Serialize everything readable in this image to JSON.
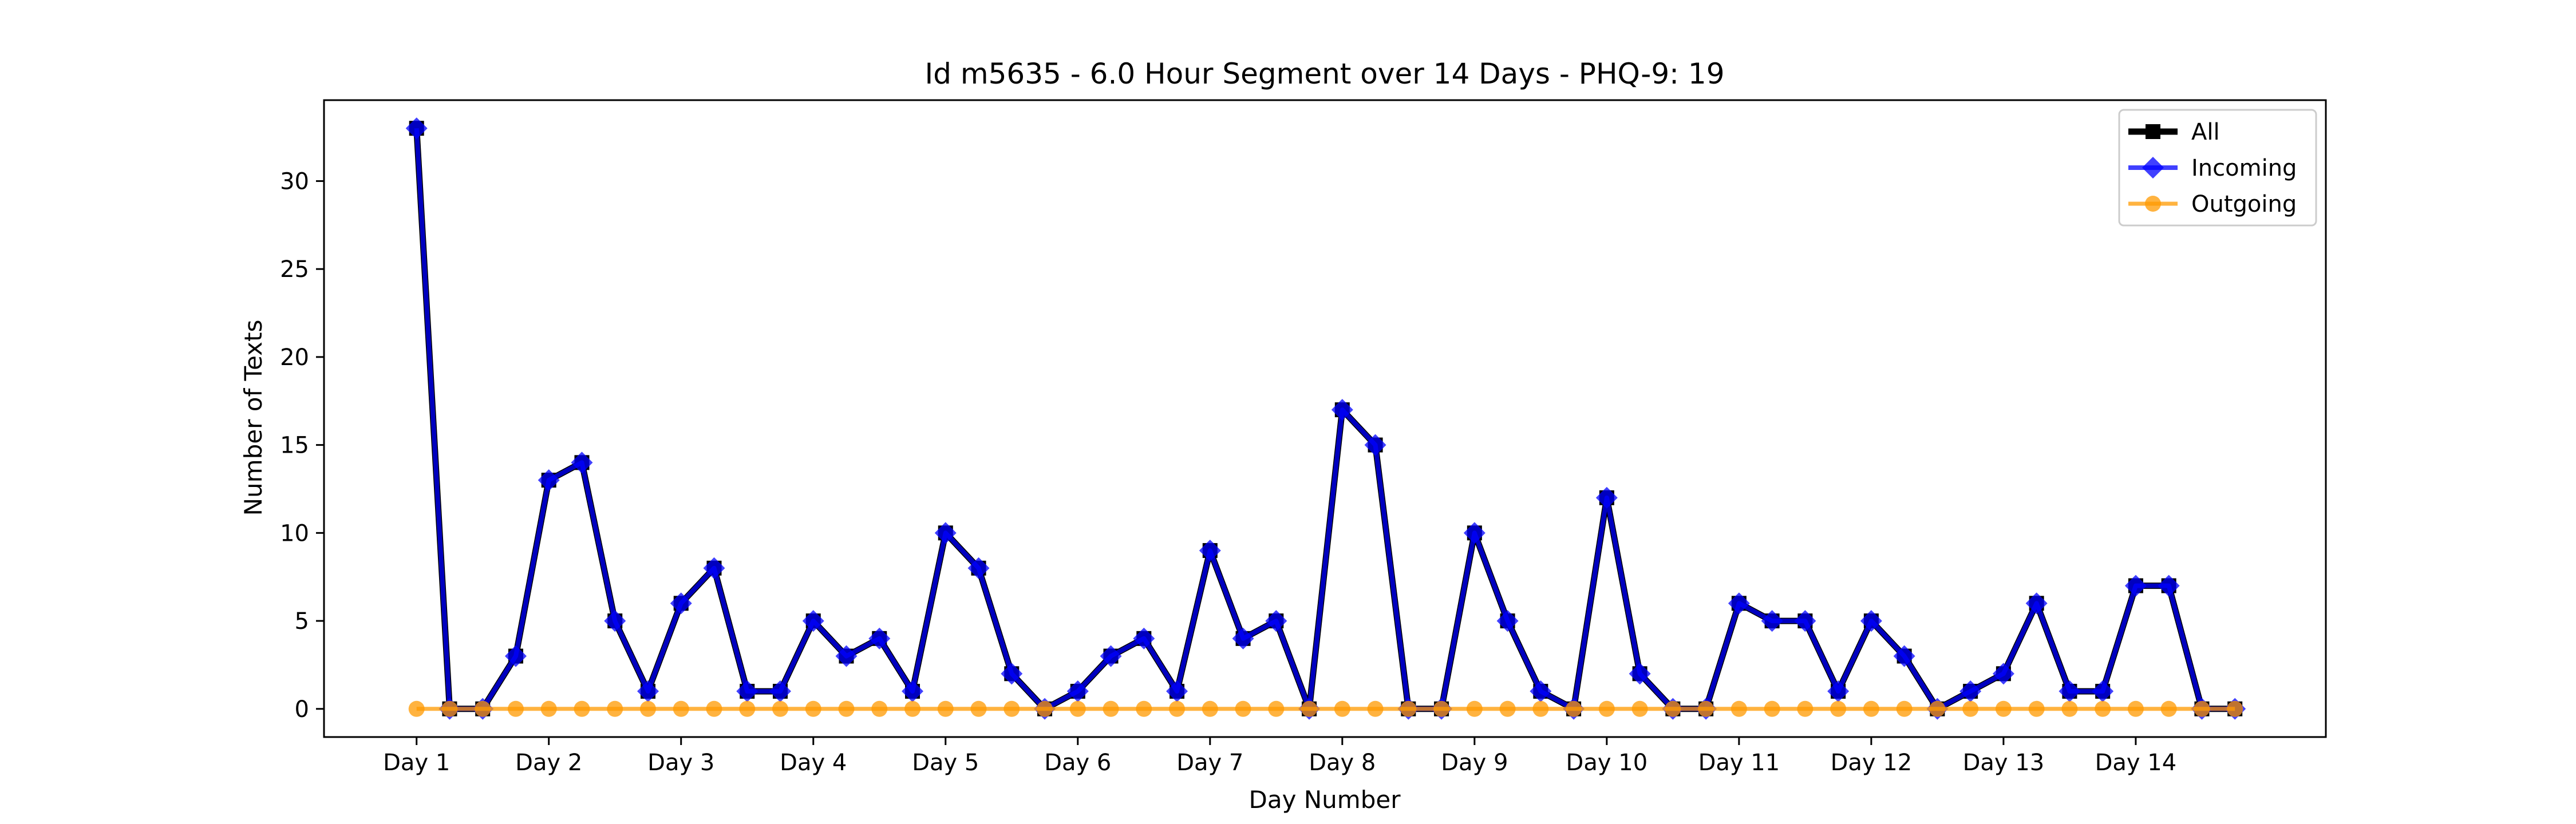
{
  "chart_data": {
    "type": "line",
    "title": "Id m5635 - 6.0 Hour Segment over 14 Days - PHQ-9: 19",
    "xlabel": "Day Number",
    "ylabel": "Number of Texts",
    "ylim": [
      -1.6,
      34.6
    ],
    "xlim": [
      -2.8,
      57.75
    ],
    "yticks": [
      0,
      5,
      10,
      15,
      20,
      25,
      30
    ],
    "xticks": [
      {
        "pos": 0,
        "label": "Day 1"
      },
      {
        "pos": 4,
        "label": "Day 2"
      },
      {
        "pos": 8,
        "label": "Day 3"
      },
      {
        "pos": 12,
        "label": "Day 4"
      },
      {
        "pos": 16,
        "label": "Day 5"
      },
      {
        "pos": 20,
        "label": "Day 6"
      },
      {
        "pos": 24,
        "label": "Day 7"
      },
      {
        "pos": 28,
        "label": "Day 8"
      },
      {
        "pos": 32,
        "label": "Day 9"
      },
      {
        "pos": 36,
        "label": "Day 10"
      },
      {
        "pos": 40,
        "label": "Day 11"
      },
      {
        "pos": 44,
        "label": "Day 12"
      },
      {
        "pos": 48,
        "label": "Day 13"
      },
      {
        "pos": 52,
        "label": "Day 14"
      }
    ],
    "grid": false,
    "legend_position": "top-right",
    "series": [
      {
        "name": "All",
        "color": "#000000",
        "marker": "square",
        "values": [
          33,
          0,
          0,
          3,
          13,
          14,
          5,
          1,
          6,
          8,
          1,
          1,
          5,
          3,
          4,
          1,
          10,
          8,
          2,
          0,
          1,
          3,
          4,
          1,
          9,
          4,
          5,
          0,
          17,
          15,
          0,
          0,
          10,
          5,
          1,
          0,
          12,
          2,
          0,
          0,
          6,
          5,
          5,
          1,
          5,
          3,
          0,
          1,
          2,
          6,
          1,
          1,
          7,
          7,
          0,
          0
        ]
      },
      {
        "name": "Incoming",
        "color": "#0000ff",
        "marker": "diamond",
        "values": [
          33,
          0,
          0,
          3,
          13,
          14,
          5,
          1,
          6,
          8,
          1,
          1,
          5,
          3,
          4,
          1,
          10,
          8,
          2,
          0,
          1,
          3,
          4,
          1,
          9,
          4,
          5,
          0,
          17,
          15,
          0,
          0,
          10,
          5,
          1,
          0,
          12,
          2,
          0,
          0,
          6,
          5,
          5,
          1,
          5,
          3,
          0,
          1,
          2,
          6,
          1,
          1,
          7,
          7,
          0,
          0
        ]
      },
      {
        "name": "Outgoing",
        "color": "#ff9900",
        "marker": "circle",
        "values": [
          0,
          0,
          0,
          0,
          0,
          0,
          0,
          0,
          0,
          0,
          0,
          0,
          0,
          0,
          0,
          0,
          0,
          0,
          0,
          0,
          0,
          0,
          0,
          0,
          0,
          0,
          0,
          0,
          0,
          0,
          0,
          0,
          0,
          0,
          0,
          0,
          0,
          0,
          0,
          0,
          0,
          0,
          0,
          0,
          0,
          0,
          0,
          0,
          0,
          0,
          0,
          0,
          0,
          0,
          0,
          0
        ]
      }
    ]
  }
}
